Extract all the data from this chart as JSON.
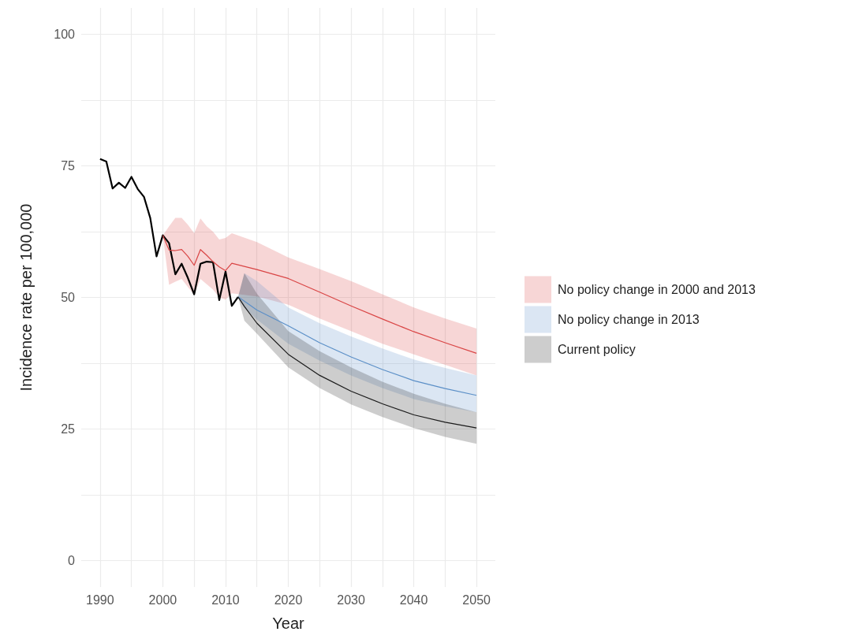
{
  "chart_data": {
    "type": "line",
    "xlabel": "Year",
    "ylabel": "Incidence rate per 100,000",
    "xlim": [
      1987,
      2053
    ],
    "xticks": [
      1990,
      {
        "value": 1995,
        "label": null
      },
      2000,
      {
        "value": 2005,
        "label": null
      },
      2010,
      {
        "value": 2015,
        "label": null
      },
      2020,
      {
        "value": 2025,
        "label": null
      },
      2030,
      {
        "value": 2035,
        "label": null
      },
      2040,
      {
        "value": 2045,
        "label": null
      },
      2050
    ],
    "ylim": [
      -5,
      105
    ],
    "yticks": [
      0,
      {
        "value": 12.5,
        "label": null
      },
      25,
      {
        "value": 37.5,
        "label": null
      },
      50,
      {
        "value": 62.5,
        "label": null
      },
      75,
      {
        "value": 87.5,
        "label": null
      },
      100
    ],
    "grid": true,
    "legend": "right",
    "line_style": "solid",
    "marker": "none",
    "series": [
      {
        "color": "#000000",
        "x": [
          1990,
          1991,
          1992,
          1993,
          1994,
          1995,
          1996,
          1997,
          1998,
          1999,
          2000,
          2001,
          2002,
          2003,
          2004,
          2005,
          2006,
          2007,
          2008,
          2009,
          2010,
          2011,
          2012
        ],
        "values": [
          76.3,
          75.8,
          70.7,
          71.8,
          70.8,
          72.9,
          70.6,
          69.1,
          65.1,
          57.8,
          61.8,
          60.3,
          54.4,
          56.4,
          53.7,
          50.6,
          56.4,
          56.8,
          56.7,
          49.5,
          54.9,
          48.4,
          50.1
        ]
      },
      {
        "name": "No policy change in 2000 and 2013",
        "color": "#d94545",
        "x": [
          2000,
          2001,
          2002,
          2003,
          2004,
          2005,
          2006,
          2007,
          2008,
          2009,
          2010,
          2011,
          2015,
          2020,
          2025,
          2030,
          2035,
          2040,
          2045,
          2050
        ],
        "values": [
          61.8,
          59,
          58.9,
          59.1,
          57.8,
          56.1,
          59.1,
          58,
          56.8,
          55.8,
          55.1,
          56.5,
          55.3,
          53.6,
          51,
          48.4,
          45.9,
          43.5,
          41.4,
          39.4
        ],
        "upper": [
          61.8,
          63.5,
          65.1,
          65.1,
          63.8,
          62.2,
          65,
          63.5,
          62.5,
          61,
          61.3,
          62.2,
          60.5,
          57.6,
          55.4,
          53.1,
          50.6,
          48.1,
          46,
          44.1
        ],
        "lower": [
          61.8,
          52.4,
          53,
          53.5,
          52,
          50.5,
          53.5,
          52.5,
          51.5,
          50,
          49.6,
          50.8,
          50.2,
          48.6,
          46,
          43.6,
          41.2,
          39.2,
          37.2,
          35.2
        ]
      },
      {
        "name": "No policy change in 2013",
        "color": "#5b8fc7",
        "x": [
          2012,
          2013,
          2015,
          2020,
          2025,
          2030,
          2035,
          2040,
          2045,
          2050
        ],
        "values": [
          50.1,
          49.3,
          47.6,
          44.6,
          41.4,
          38.7,
          36.3,
          34.2,
          32.7,
          31.4
        ],
        "upper": [
          50.1,
          54.6,
          53.1,
          48.1,
          45.1,
          42.6,
          40.3,
          38.2,
          36.6,
          35.2
        ],
        "lower": [
          50.1,
          48,
          45.8,
          41.2,
          38,
          35.2,
          32.8,
          30.7,
          29.3,
          28.2
        ]
      },
      {
        "name": "Current policy",
        "color": "#1a1a1a",
        "x": [
          2012,
          2013,
          2015,
          2020,
          2025,
          2030,
          2035,
          2040,
          2045,
          2050
        ],
        "values": [
          50.1,
          48.3,
          45.1,
          39.2,
          35.2,
          32.2,
          29.8,
          27.7,
          26.3,
          25.2
        ],
        "upper": [
          50.1,
          54.6,
          50.7,
          43.6,
          39.8,
          36.7,
          34,
          31.7,
          29.8,
          28.2
        ],
        "lower": [
          50.1,
          45.6,
          43.1,
          36.7,
          32.8,
          29.7,
          27.3,
          25.2,
          23.5,
          22.2
        ]
      }
    ]
  }
}
